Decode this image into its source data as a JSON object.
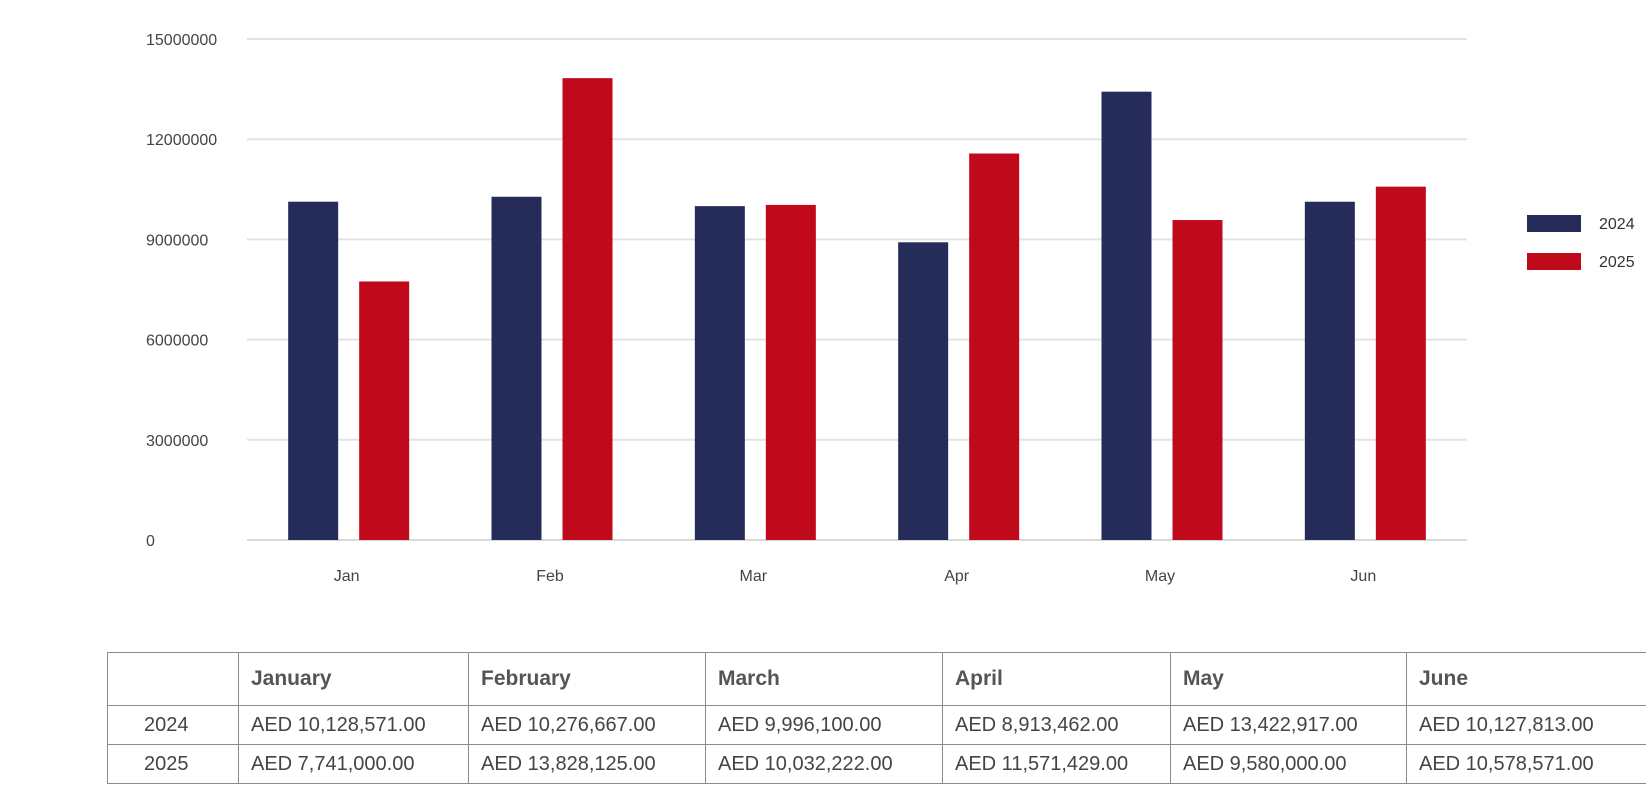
{
  "chart_data": {
    "type": "bar",
    "categories": [
      "Jan",
      "Feb",
      "Mar",
      "Apr",
      "May",
      "Jun"
    ],
    "series": [
      {
        "name": "2024",
        "color": "#252c5a",
        "values": [
          10128571,
          10276667,
          9996100,
          8913462,
          13422917,
          10127813
        ]
      },
      {
        "name": "2025",
        "color": "#c00a1c",
        "values": [
          7741000,
          13828125,
          10032222,
          11571429,
          9580000,
          10578571
        ]
      }
    ],
    "yticks": [
      "0",
      "3000000",
      "6000000",
      "9000000",
      "12000000",
      "15000000"
    ],
    "ylim": [
      0,
      15000000
    ],
    "grid": true,
    "legend": "right",
    "title": "",
    "xlabel": "",
    "ylabel": ""
  },
  "table": {
    "corner": "",
    "columns": [
      "January",
      "February",
      "March",
      "April",
      "May",
      "June"
    ],
    "rows": [
      {
        "label": "2024",
        "cells": [
          "AED 10,128,571.00",
          "AED 10,276,667.00",
          "AED 9,996,100.00",
          "AED 8,913,462.00",
          "AED 13,422,917.00",
          "AED 10,127,813.00"
        ]
      },
      {
        "label": "2025",
        "cells": [
          "AED 7,741,000.00",
          "AED 13,828,125.00",
          "AED 10,032,222.00",
          "AED 11,571,429.00",
          "AED 9,580,000.00",
          "AED 10,578,571.00"
        ]
      }
    ]
  }
}
